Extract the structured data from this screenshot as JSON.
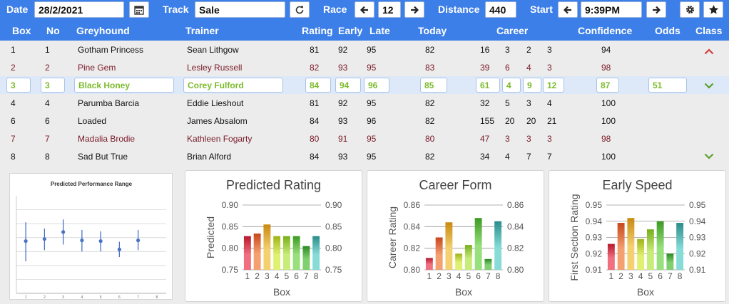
{
  "toolbar": {
    "date_label": "Date",
    "date_value": "28/2/2021",
    "track_label": "Track",
    "track_value": "Sale",
    "race_label": "Race",
    "race_value": "12",
    "distance_label": "Distance",
    "distance_value": "440",
    "start_label": "Start",
    "start_value": "9:39PM"
  },
  "columns": {
    "box": "Box",
    "no": "No",
    "greyhound": "Greyhound",
    "trainer": "Trainer",
    "rating": "Rating",
    "early": "Early",
    "late": "Late",
    "today": "Today",
    "career": "Career",
    "confidence": "Confidence",
    "odds": "Odds",
    "class": "Class"
  },
  "rows": [
    {
      "box": "1",
      "no": "1",
      "greyhound": "Gotham Princess",
      "trainer": "Sean Lithgow",
      "rating": "81",
      "early": "92",
      "late": "95",
      "today": "82",
      "c1": "16",
      "c2": "3",
      "c3": "2",
      "c4": "3",
      "confidence": "94",
      "odds": "",
      "style": "normal"
    },
    {
      "box": "2",
      "no": "2",
      "greyhound": "Pine Gem",
      "trainer": "Lesley Russell",
      "rating": "82",
      "early": "93",
      "late": "95",
      "today": "83",
      "c1": "39",
      "c2": "6",
      "c3": "4",
      "c4": "3",
      "confidence": "98",
      "odds": "",
      "style": "maroon"
    },
    {
      "box": "3",
      "no": "3",
      "greyhound": "Black Honey",
      "trainer": "Corey Fulford",
      "rating": "84",
      "early": "94",
      "late": "96",
      "today": "85",
      "c1": "61",
      "c2": "4",
      "c3": "9",
      "c4": "12",
      "confidence": "87",
      "odds": "51",
      "style": "sel"
    },
    {
      "box": "4",
      "no": "4",
      "greyhound": "Parumba Barcia",
      "trainer": "Eddie Lieshout",
      "rating": "81",
      "early": "92",
      "late": "95",
      "today": "82",
      "c1": "32",
      "c2": "5",
      "c3": "3",
      "c4": "4",
      "confidence": "100",
      "odds": "",
      "style": "normal"
    },
    {
      "box": "6",
      "no": "6",
      "greyhound": "Loaded",
      "trainer": "James Absalom",
      "rating": "84",
      "early": "93",
      "late": "96",
      "today": "82",
      "c1": "155",
      "c2": "20",
      "c3": "20",
      "c4": "21",
      "confidence": "100",
      "odds": "",
      "style": "normal"
    },
    {
      "box": "7",
      "no": "7",
      "greyhound": "Madalia Brodie",
      "trainer": "Kathleen Fogarty",
      "rating": "80",
      "early": "91",
      "late": "95",
      "today": "80",
      "c1": "47",
      "c2": "3",
      "c3": "3",
      "c4": "3",
      "confidence": "98",
      "odds": "",
      "style": "maroon"
    },
    {
      "box": "8",
      "no": "8",
      "greyhound": "Sad But True",
      "trainer": "Brian Alford",
      "rating": "84",
      "early": "93",
      "late": "95",
      "today": "82",
      "c1": "34",
      "c2": "4",
      "c3": "7",
      "c4": "7",
      "confidence": "100",
      "odds": "",
      "style": "normal"
    }
  ],
  "colors": {
    "accent": "#3d7fe8",
    "selected_text": "#7cbb2c",
    "maroon": "#7a1a28",
    "up_arrow": "#d23c3c",
    "down_arrow": "#5aa02c"
  },
  "icons": {
    "date": "calendar-icon",
    "track": "refresh-icon",
    "prev": "arrow-left-icon",
    "next": "arrow-right-icon",
    "settings": "gear-icon",
    "favorite": "star-icon"
  },
  "chart_data": [
    {
      "type": "scatter",
      "title": "Predicted Performance Range",
      "x": [
        1,
        2,
        3,
        4,
        5,
        6,
        7
      ],
      "y": [
        0.835,
        0.838,
        0.848,
        0.836,
        0.835,
        0.823,
        0.836
      ],
      "error_low": [
        0.806,
        0.822,
        0.83,
        0.82,
        0.82,
        0.812,
        0.822
      ],
      "error_high": [
        0.862,
        0.853,
        0.866,
        0.851,
        0.849,
        0.834,
        0.851
      ],
      "xticks": [
        "1",
        "2",
        "3",
        "4",
        "5",
        "6",
        "7",
        "8"
      ],
      "xlim": [
        0.5,
        8.5
      ],
      "ylim": [
        0.76,
        0.9
      ],
      "grid": true
    },
    {
      "type": "bar",
      "title": "Predicted Rating",
      "categories": [
        "1",
        "2",
        "3",
        "4",
        "5",
        "6",
        "7",
        "8"
      ],
      "values": [
        0.828,
        0.834,
        0.855,
        0.828,
        0.828,
        0.828,
        0.805,
        0.828
      ],
      "xlabel": "Box",
      "ylabel": "Predicted",
      "ylim": [
        0.75,
        0.9
      ],
      "yticks": [
        "0.75",
        "0.80",
        "0.85",
        "0.90"
      ],
      "secondary_yticks": [
        "0.75",
        "0.80",
        "0.85",
        "0.90"
      ],
      "grid": true
    },
    {
      "type": "bar",
      "title": "Career Form",
      "categories": [
        "1",
        "2",
        "3",
        "4",
        "5",
        "6",
        "7",
        "8"
      ],
      "values": [
        0.811,
        0.83,
        0.844,
        0.815,
        0.823,
        0.848,
        0.81,
        0.845
      ],
      "xlabel": "Box",
      "ylabel": "Career Rating",
      "ylim": [
        0.8,
        0.86
      ],
      "yticks": [
        "0.80",
        "0.82",
        "0.84",
        "0.86"
      ],
      "secondary_yticks": [
        "0.80",
        "0.82",
        "0.84",
        "0.86"
      ],
      "grid": true
    },
    {
      "type": "bar",
      "title": "Early Speed",
      "categories": [
        "1",
        "2",
        "3",
        "4",
        "5",
        "6",
        "7",
        "8"
      ],
      "values": [
        0.926,
        0.939,
        0.942,
        0.929,
        0.935,
        0.94,
        0.92,
        0.939
      ],
      "xlabel": "Box",
      "ylabel": "First Section Rating",
      "ylim": [
        0.91,
        0.95
      ],
      "yticks": [
        "0.91",
        "0.92",
        "0.93",
        "0.94",
        "0.95"
      ],
      "secondary_yticks": [
        "0.91",
        "0.92",
        "0.93",
        "0.94",
        "0.95"
      ],
      "grid": true
    }
  ]
}
